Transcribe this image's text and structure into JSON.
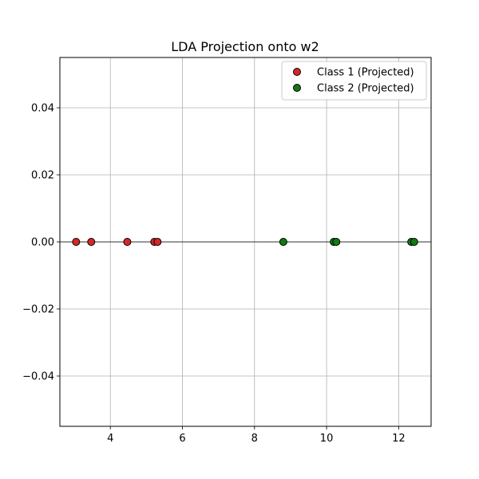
{
  "chart_data": {
    "type": "scatter",
    "title": "LDA Projection onto w2",
    "xlabel": "",
    "ylabel": "",
    "xlim": [
      2.6,
      12.9
    ],
    "ylim": [
      -0.055,
      0.055
    ],
    "x_ticks": [
      4,
      6,
      8,
      10,
      12
    ],
    "x_tick_labels": [
      "4",
      "6",
      "8",
      "10",
      "12"
    ],
    "y_ticks": [
      -0.04,
      -0.02,
      0.0,
      0.02,
      0.04
    ],
    "y_tick_labels": [
      "−0.04",
      "−0.02",
      "0.00",
      "0.02",
      "0.04"
    ],
    "grid": true,
    "zero_line": true,
    "legend_position": "top-right",
    "series": [
      {
        "name": "Class 1 (Projected)",
        "color": "#d62728",
        "points": [
          {
            "x": 3.05,
            "y": 0
          },
          {
            "x": 3.47,
            "y": 0
          },
          {
            "x": 4.47,
            "y": 0
          },
          {
            "x": 5.22,
            "y": 0
          },
          {
            "x": 5.31,
            "y": 0
          }
        ]
      },
      {
        "name": "Class 2 (Projected)",
        "color": "#117a11",
        "points": [
          {
            "x": 8.8,
            "y": 0
          },
          {
            "x": 10.2,
            "y": 0
          },
          {
            "x": 10.27,
            "y": 0
          },
          {
            "x": 12.35,
            "y": 0
          },
          {
            "x": 12.43,
            "y": 0
          }
        ]
      }
    ]
  }
}
